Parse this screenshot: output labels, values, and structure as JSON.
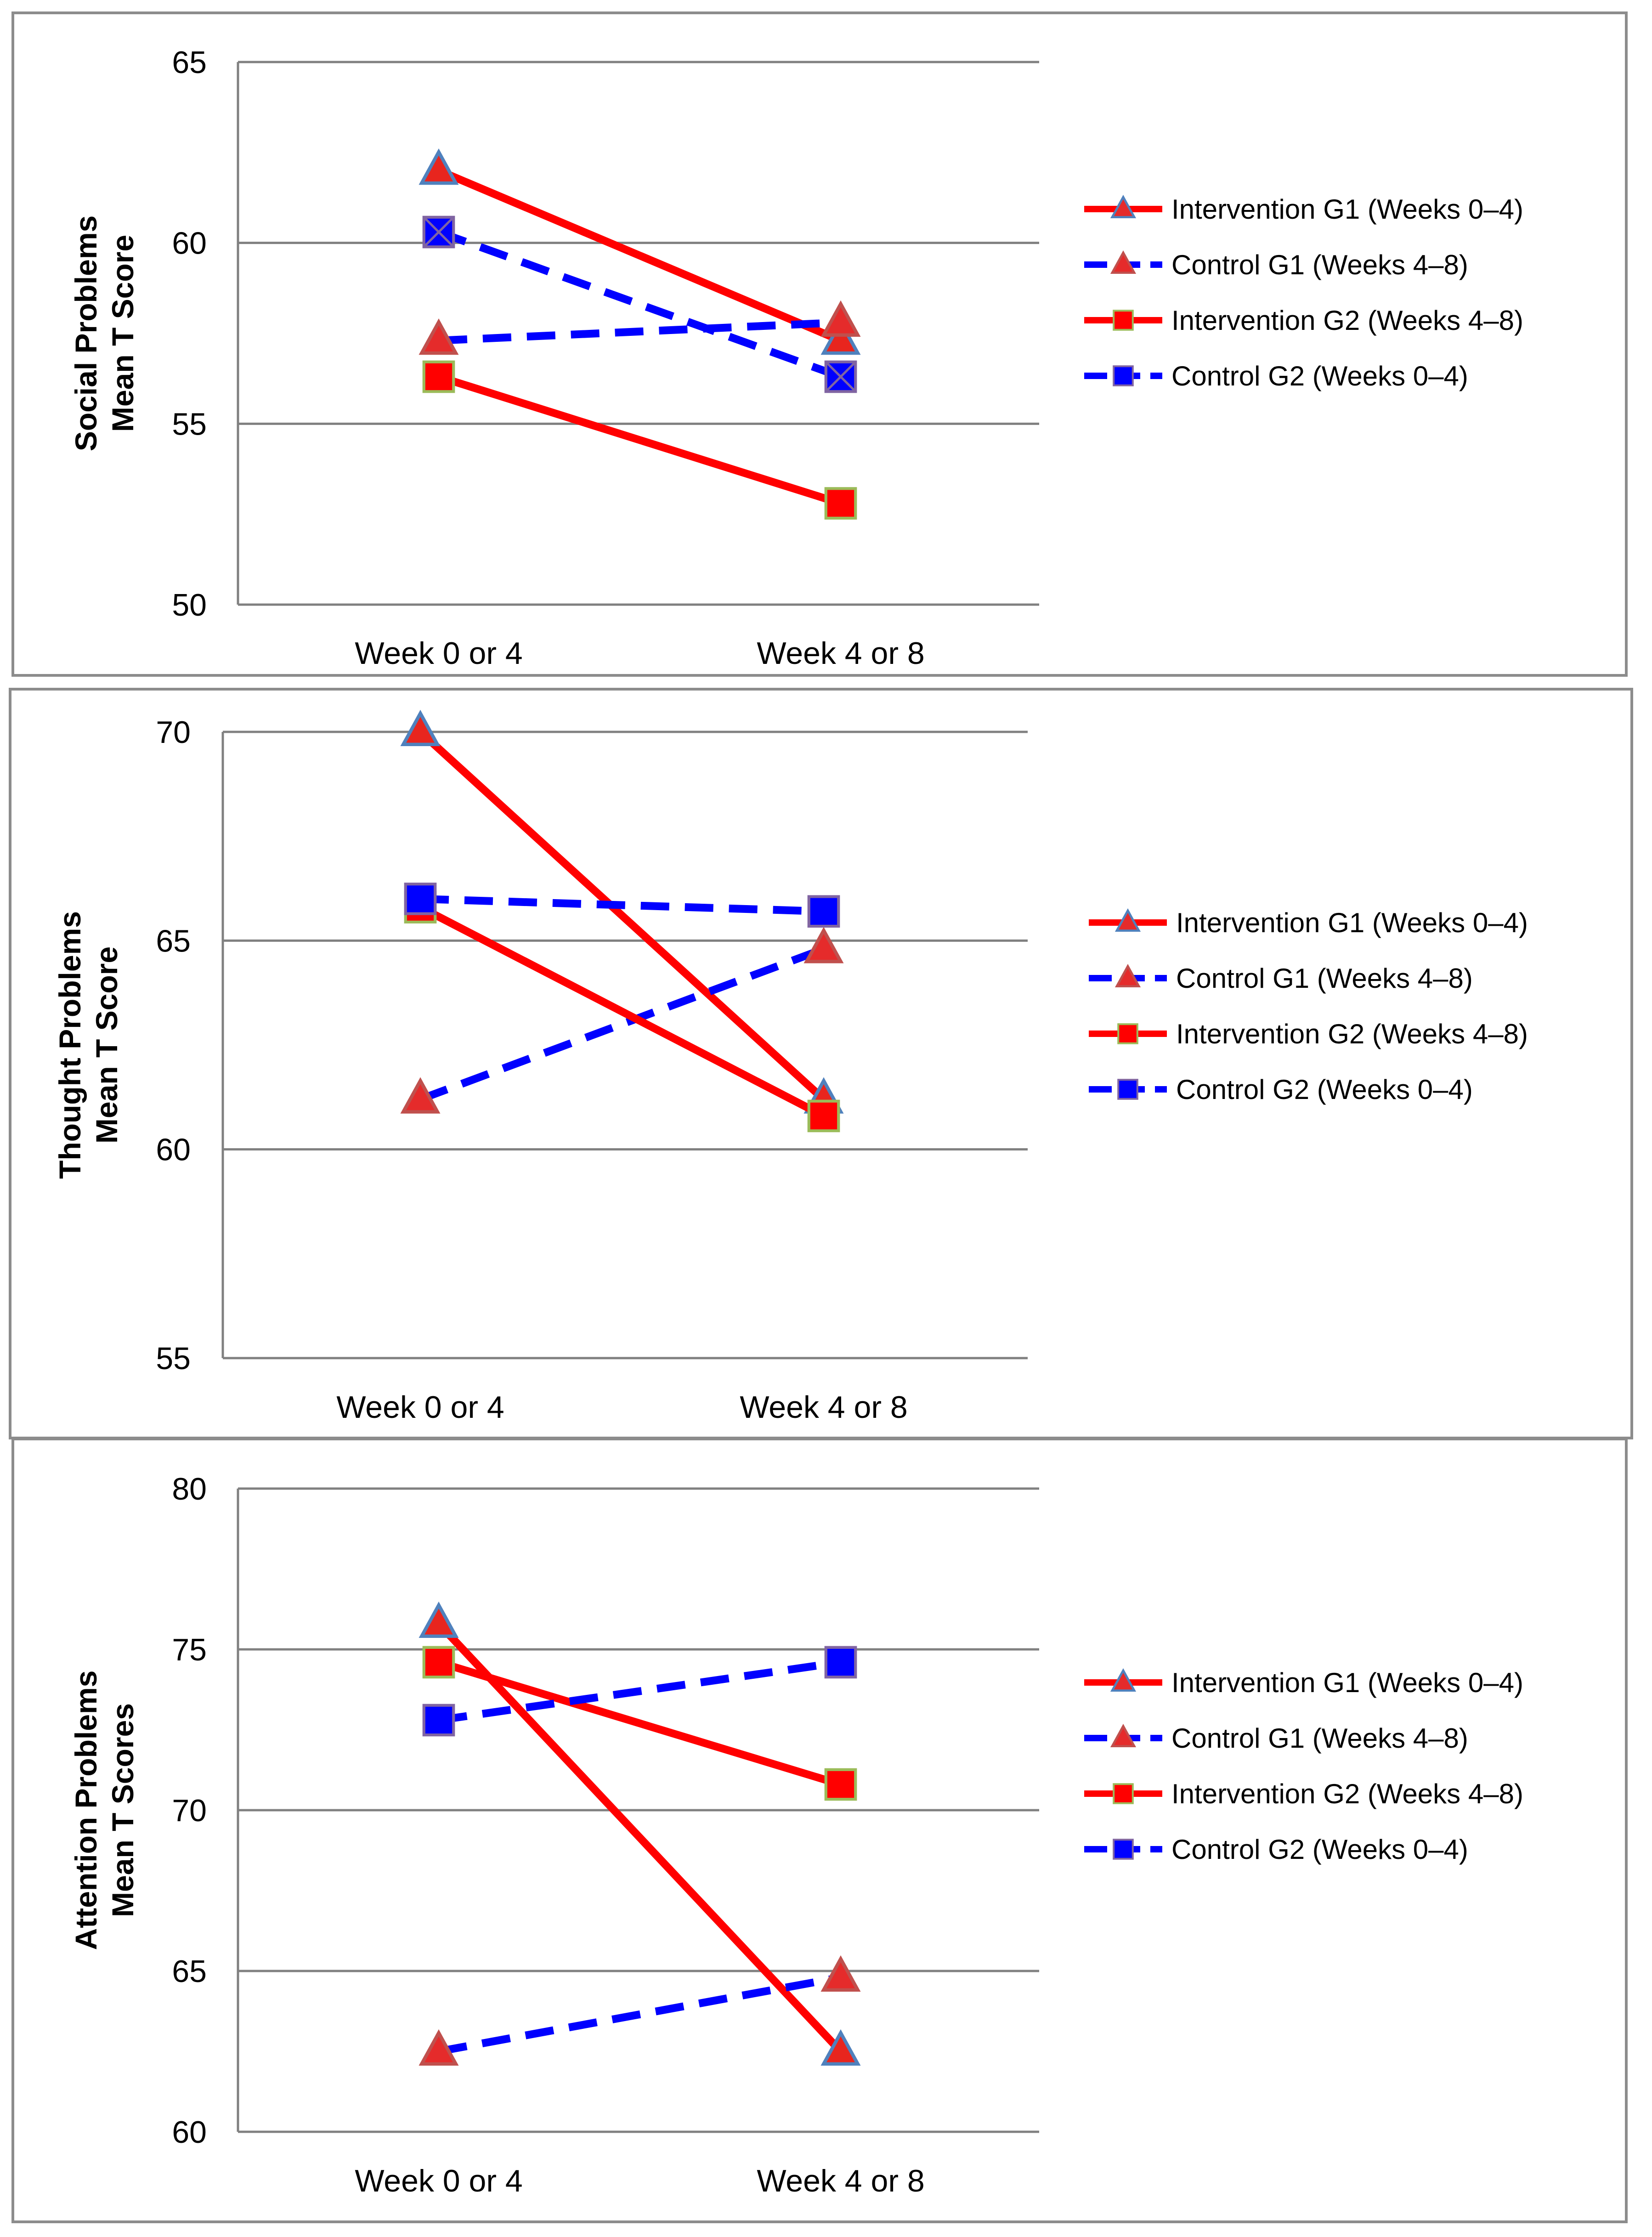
{
  "colors": {
    "intervention": "#ff0000",
    "control": "#0000ff",
    "marker_outline_blue": "#4f81bd",
    "marker_outline_red": "#c0504d",
    "marker_outline_green": "#9bbb59",
    "grid": "#808080",
    "frame": "#8c8c8c"
  },
  "chart_data": [
    {
      "type": "line",
      "ylabel_line1": "Social Problems",
      "ylabel_line2": "Mean T Score",
      "categories": [
        "Week 0 or 4",
        "Week 4 or 8"
      ],
      "ylim": [
        50,
        65
      ],
      "yticks": [
        "50",
        "55",
        "60",
        "65"
      ],
      "legend_position": "right",
      "series": [
        {
          "name": "Intervention G1 (Weeks 0–4)",
          "values": [
            62,
            57.3
          ],
          "color": "#ff0000",
          "dash": "solid",
          "marker": "triangle",
          "marker_outline": "#4f81bd"
        },
        {
          "name": "Control G1 (Weeks 4–8)",
          "values": [
            57.3,
            57.8
          ],
          "color": "#0000ff",
          "dash": "dashed",
          "marker": "triangle",
          "marker_outline": "#c0504d"
        },
        {
          "name": "Intervention G2 (Weeks 4–8)",
          "values": [
            56.3,
            52.8
          ],
          "color": "#ff0000",
          "dash": "solid",
          "marker": "square",
          "marker_outline": "#9bbb59"
        },
        {
          "name": "Control G2  (Weeks 0–4)",
          "values": [
            60.3,
            56.3
          ],
          "color": "#0000ff",
          "dash": "dashed",
          "marker": "square-x",
          "marker_outline": "#8064a2"
        }
      ]
    },
    {
      "type": "line",
      "ylabel_line1": "Thought Problems",
      "ylabel_line2": "Mean T Score",
      "categories": [
        "Week 0 or 4",
        "Week 4 or 8"
      ],
      "ylim": [
        55,
        70
      ],
      "yticks": [
        "55",
        "60",
        "65",
        "70"
      ],
      "legend_position": "right",
      "series": [
        {
          "name": "Intervention G1 (Weeks 0–4)",
          "values": [
            70,
            61.2
          ],
          "color": "#ff0000",
          "dash": "solid",
          "marker": "triangle",
          "marker_outline": "#4f81bd"
        },
        {
          "name": "Control G1 (Weeks 4–8)",
          "values": [
            61.2,
            64.8
          ],
          "color": "#0000ff",
          "dash": "dashed",
          "marker": "triangle",
          "marker_outline": "#c0504d"
        },
        {
          "name": "Intervention G2 (Weeks 4–8)",
          "values": [
            65.8,
            60.8
          ],
          "color": "#ff0000",
          "dash": "solid",
          "marker": "square",
          "marker_outline": "#9bbb59"
        },
        {
          "name": "Control G2  (Weeks 0–4)",
          "values": [
            66,
            65.7
          ],
          "color": "#0000ff",
          "dash": "dashed",
          "marker": "square",
          "marker_outline": "#8064a2"
        }
      ]
    },
    {
      "type": "line",
      "ylabel_line1": "Attention Problems",
      "ylabel_line2": "Mean T Scores",
      "categories": [
        "Week 0 or 4",
        "Week 4 or 8"
      ],
      "ylim": [
        60,
        80
      ],
      "yticks": [
        "60",
        "65",
        "70",
        "75",
        "80"
      ],
      "legend_position": "right",
      "series": [
        {
          "name": "Intervention G1 (Weeks 0–4)",
          "values": [
            75.8,
            62.5
          ],
          "color": "#ff0000",
          "dash": "solid",
          "marker": "triangle",
          "marker_outline": "#4f81bd"
        },
        {
          "name": "Control G1 (Weeks 4–8)",
          "values": [
            62.5,
            64.8
          ],
          "color": "#0000ff",
          "dash": "dashed",
          "marker": "triangle",
          "marker_outline": "#c0504d"
        },
        {
          "name": "Intervention G2 (Weeks 4–8)",
          "values": [
            74.6,
            70.8
          ],
          "color": "#ff0000",
          "dash": "solid",
          "marker": "square",
          "marker_outline": "#9bbb59"
        },
        {
          "name": "Control G2  (Weeks 0–4)",
          "values": [
            72.8,
            74.6
          ],
          "color": "#0000ff",
          "dash": "dashed",
          "marker": "square",
          "marker_outline": "#8064a2"
        }
      ]
    }
  ]
}
